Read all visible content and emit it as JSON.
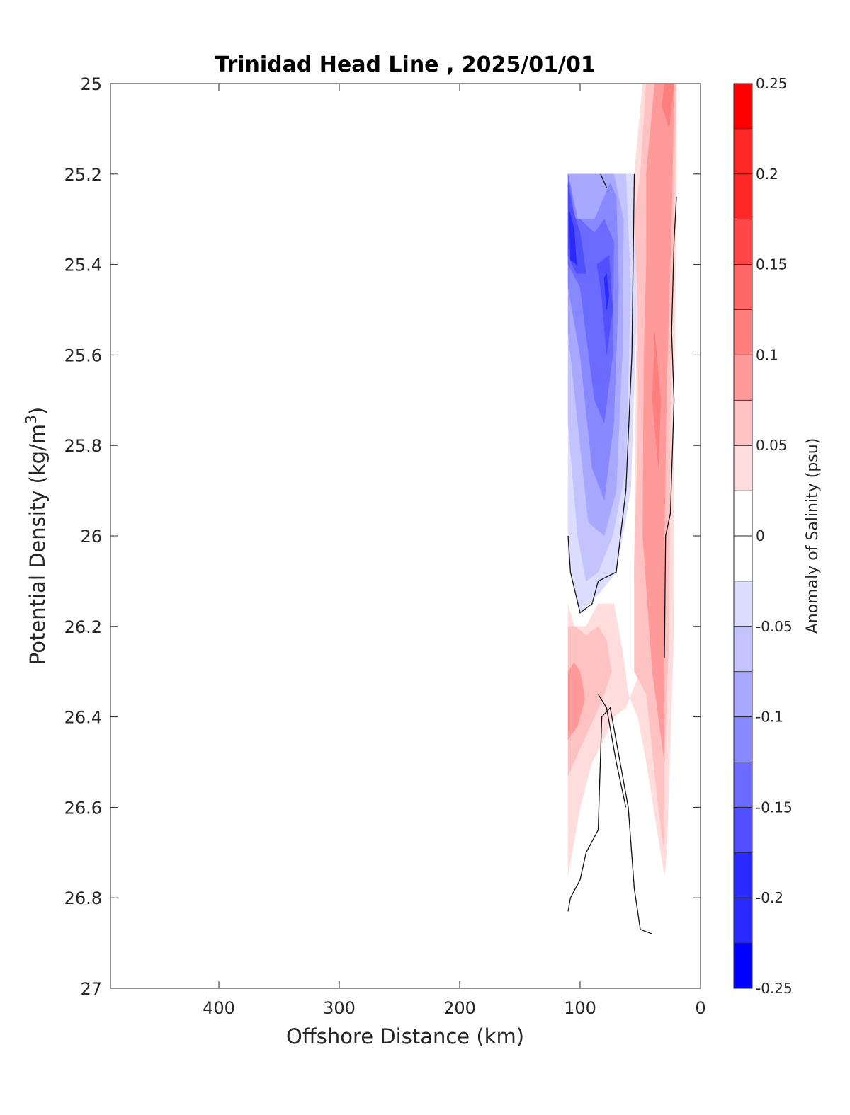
{
  "chart_data": {
    "type": "heatmap",
    "title": "Trinidad Head Line , 2025/01/01",
    "xlabel": "Offshore Distance (km)",
    "ylabel": "Potential Density (kg/m",
    "ylabel_sup": "3",
    "ylabel_end": ")",
    "colorbar_label": "Anomaly of Salinity (psu)",
    "xlim": [
      490,
      0
    ],
    "ylim": [
      25,
      27
    ],
    "x_reversed": true,
    "y_reversed": true,
    "xticks": [
      {
        "value": 400,
        "label": "400"
      },
      {
        "value": 300,
        "label": "300"
      },
      {
        "value": 200,
        "label": "200"
      },
      {
        "value": 100,
        "label": "100"
      },
      {
        "value": 0,
        "label": "0"
      }
    ],
    "yticks": [
      {
        "value": 25,
        "label": "25"
      },
      {
        "value": 25.2,
        "label": "25.2"
      },
      {
        "value": 25.4,
        "label": "25.4"
      },
      {
        "value": 25.6,
        "label": "25.6"
      },
      {
        "value": 25.8,
        "label": "25.8"
      },
      {
        "value": 26,
        "label": "26"
      },
      {
        "value": 26.2,
        "label": "26.2"
      },
      {
        "value": 26.4,
        "label": "26.4"
      },
      {
        "value": 26.6,
        "label": "26.6"
      },
      {
        "value": 26.8,
        "label": "26.8"
      },
      {
        "value": 27,
        "label": "27"
      }
    ],
    "colorbar": {
      "range": [
        -0.25,
        0.25
      ],
      "ticks": [
        {
          "value": 0.25,
          "label": "0.25"
        },
        {
          "value": 0.2,
          "label": "0.2"
        },
        {
          "value": 0.15,
          "label": "0.15"
        },
        {
          "value": 0.1,
          "label": "0.1"
        },
        {
          "value": 0.05,
          "label": "0.05"
        },
        {
          "value": 0,
          "label": "0"
        },
        {
          "value": -0.05,
          "label": "-0.05"
        },
        {
          "value": -0.1,
          "label": "-0.1"
        },
        {
          "value": -0.15,
          "label": "-0.15"
        },
        {
          "value": -0.2,
          "label": "-0.2"
        },
        {
          "value": -0.25,
          "label": "-0.25"
        }
      ],
      "levels": [
        {
          "from": 0.225,
          "to": 0.25,
          "color": "#ff0000"
        },
        {
          "from": 0.175,
          "to": 0.225,
          "color": "#ff2828"
        },
        {
          "from": 0.15,
          "to": 0.175,
          "color": "#ff4747"
        },
        {
          "from": 0.125,
          "to": 0.15,
          "color": "#ff6666"
        },
        {
          "from": 0.1,
          "to": 0.125,
          "color": "#ff7f7f"
        },
        {
          "from": 0.075,
          "to": 0.1,
          "color": "#ff9a9a"
        },
        {
          "from": 0.05,
          "to": 0.075,
          "color": "#ffc2c2"
        },
        {
          "from": 0.025,
          "to": 0.05,
          "color": "#ffdddd"
        },
        {
          "from": -0.025,
          "to": 0.025,
          "color": "#ffffff"
        },
        {
          "from": -0.05,
          "to": -0.025,
          "color": "#dcdcff"
        },
        {
          "from": -0.075,
          "to": -0.05,
          "color": "#c3c3ff"
        },
        {
          "from": -0.1,
          "to": -0.075,
          "color": "#a8a8ff"
        },
        {
          "from": -0.125,
          "to": -0.1,
          "color": "#8888ff"
        },
        {
          "from": -0.15,
          "to": -0.125,
          "color": "#6b6bff"
        },
        {
          "from": -0.175,
          "to": -0.15,
          "color": "#5050ff"
        },
        {
          "from": -0.225,
          "to": -0.175,
          "color": "#2a2aff"
        },
        {
          "from": -0.25,
          "to": -0.225,
          "color": "#0000ff"
        }
      ]
    },
    "anomaly_regions": [
      {
        "color": "#dcdcff",
        "value": -0.04,
        "points": [
          [
            110,
            25.2
          ],
          [
            110,
            26.04
          ],
          [
            100,
            26.17
          ],
          [
            85,
            26.13
          ],
          [
            70,
            26.08
          ],
          [
            58,
            25.9
          ],
          [
            53,
            25.5
          ],
          [
            55,
            25.2
          ]
        ]
      },
      {
        "color": "#c3c3ff",
        "value": -0.06,
        "points": [
          [
            110,
            25.2
          ],
          [
            110,
            25.75
          ],
          [
            102,
            26.0
          ],
          [
            95,
            26.1
          ],
          [
            85,
            26.08
          ],
          [
            73,
            26.0
          ],
          [
            62,
            25.85
          ],
          [
            58,
            25.45
          ],
          [
            62,
            25.2
          ]
        ]
      },
      {
        "color": "#a8a8ff",
        "value": -0.08,
        "points": [
          [
            110,
            25.2
          ],
          [
            110,
            25.55
          ],
          [
            102,
            25.75
          ],
          [
            93,
            25.97
          ],
          [
            80,
            26.0
          ],
          [
            70,
            25.9
          ],
          [
            65,
            25.6
          ],
          [
            64,
            25.3
          ],
          [
            72,
            25.2
          ]
        ]
      },
      {
        "color": "#8888ff",
        "value": -0.11,
        "points": [
          [
            110,
            25.2
          ],
          [
            110,
            25.45
          ],
          [
            100,
            25.6
          ],
          [
            90,
            25.85
          ],
          [
            80,
            25.92
          ],
          [
            72,
            25.75
          ],
          [
            68,
            25.45
          ],
          [
            70,
            25.25
          ],
          [
            75,
            25.22
          ],
          [
            88,
            25.3
          ],
          [
            102,
            25.3
          ]
        ]
      },
      {
        "color": "#6b6bff",
        "value": -0.14,
        "points": [
          [
            110,
            25.2
          ],
          [
            110,
            25.4
          ],
          [
            100,
            25.45
          ],
          [
            88,
            25.7
          ],
          [
            80,
            25.75
          ],
          [
            73,
            25.6
          ],
          [
            72,
            25.35
          ],
          [
            80,
            25.3
          ],
          [
            88,
            25.33
          ],
          [
            100,
            25.3
          ],
          [
            104,
            25.3
          ]
        ]
      },
      {
        "color": "#5050ff",
        "value": -0.16,
        "points": [
          [
            110,
            25.22
          ],
          [
            110,
            25.38
          ],
          [
            103,
            25.42
          ],
          [
            95,
            25.42
          ],
          [
            100,
            25.33
          ],
          [
            106,
            25.28
          ]
        ]
      },
      {
        "color": "#5050ff",
        "value": -0.16,
        "points": [
          [
            86,
            25.4
          ],
          [
            82,
            25.47
          ],
          [
            78,
            25.6
          ],
          [
            73,
            25.5
          ],
          [
            76,
            25.38
          ]
        ]
      },
      {
        "color": "#2a2aff",
        "value": -0.19,
        "points": [
          [
            109,
            25.28
          ],
          [
            108,
            25.39
          ],
          [
            103,
            25.4
          ],
          [
            105,
            25.32
          ]
        ]
      },
      {
        "color": "#2a2aff",
        "value": -0.19,
        "points": [
          [
            80,
            25.43
          ],
          [
            78,
            25.5
          ],
          [
            76,
            25.47
          ],
          [
            78,
            25.42
          ]
        ]
      },
      {
        "color": "#ffdddd",
        "value": 0.04,
        "points": [
          [
            55,
            25.2
          ],
          [
            48,
            25.0
          ],
          [
            20,
            25.0
          ],
          [
            20,
            25.3
          ],
          [
            22,
            25.7
          ],
          [
            22,
            26.2
          ],
          [
            28,
            26.7
          ],
          [
            30,
            26.75
          ],
          [
            45,
            26.5
          ],
          [
            52,
            26.4
          ],
          [
            60,
            26.35
          ],
          [
            65,
            26.25
          ],
          [
            72,
            26.15
          ],
          [
            85,
            26.15
          ],
          [
            95,
            26.2
          ],
          [
            105,
            26.2
          ],
          [
            110,
            26.15
          ],
          [
            110,
            26.75
          ],
          [
            100,
            26.6
          ],
          [
            90,
            26.5
          ],
          [
            80,
            26.45
          ],
          [
            72,
            26.4
          ],
          [
            62,
            26.38
          ],
          [
            50,
            26.3
          ],
          [
            55,
            26.1
          ],
          [
            53,
            25.5
          ]
        ]
      },
      {
        "color": "#ffc2c2",
        "value": 0.06,
        "points": [
          [
            50,
            25.2
          ],
          [
            45,
            25.0
          ],
          [
            20,
            25.0
          ],
          [
            22,
            25.3
          ],
          [
            25,
            25.7
          ],
          [
            26,
            26.2
          ],
          [
            30,
            26.5
          ],
          [
            30,
            26.7
          ],
          [
            35,
            26.6
          ],
          [
            45,
            26.35
          ],
          [
            55,
            26.3
          ],
          [
            55,
            26.05
          ],
          [
            52,
            25.8
          ],
          [
            52,
            25.5
          ],
          [
            55,
            25.3
          ]
        ]
      },
      {
        "color": "#ffc2c2",
        "value": 0.06,
        "points": [
          [
            110,
            26.2
          ],
          [
            110,
            26.53
          ],
          [
            100,
            26.47
          ],
          [
            88,
            26.4
          ],
          [
            80,
            26.35
          ],
          [
            74,
            26.3
          ],
          [
            78,
            26.23
          ],
          [
            85,
            26.2
          ],
          [
            95,
            26.22
          ],
          [
            104,
            26.2
          ]
        ]
      },
      {
        "color": "#ff9a9a",
        "value": 0.08,
        "points": [
          [
            45,
            25.2
          ],
          [
            38,
            25.0
          ],
          [
            22,
            25.0
          ],
          [
            24,
            25.3
          ],
          [
            28,
            25.65
          ],
          [
            30,
            26.0
          ],
          [
            30,
            26.5
          ],
          [
            40,
            26.3
          ],
          [
            48,
            26.0
          ],
          [
            47,
            25.6
          ],
          [
            45,
            25.4
          ]
        ]
      },
      {
        "color": "#ff9a9a",
        "value": 0.08,
        "points": [
          [
            110,
            26.3
          ],
          [
            110,
            26.45
          ],
          [
            102,
            26.42
          ],
          [
            96,
            26.36
          ],
          [
            100,
            26.3
          ],
          [
            105,
            26.28
          ]
        ]
      },
      {
        "color": "#ff7f7f",
        "value": 0.11,
        "points": [
          [
            38,
            25.55
          ],
          [
            33,
            25.7
          ],
          [
            35,
            25.85
          ],
          [
            40,
            25.7
          ]
        ]
      },
      {
        "color": "#ff7f7f",
        "value": 0.11,
        "points": [
          [
            30,
            25.0
          ],
          [
            22,
            25.0
          ],
          [
            26,
            25.1
          ],
          [
            32,
            25.05
          ]
        ]
      }
    ],
    "zero_contours": [
      [
        [
          110,
          26.0
        ],
        [
          108,
          26.08
        ],
        [
          100,
          26.17
        ],
        [
          90,
          26.15
        ],
        [
          85,
          26.1
        ],
        [
          70,
          26.08
        ],
        [
          62,
          25.9
        ],
        [
          57,
          25.6
        ],
        [
          55,
          25.2
        ]
      ],
      [
        [
          83,
          25.2
        ],
        [
          78,
          25.23
        ]
      ],
      [
        [
          20,
          25.25
        ],
        [
          22,
          25.35
        ],
        [
          24,
          25.55
        ],
        [
          22,
          25.7
        ],
        [
          25,
          25.95
        ],
        [
          29,
          26.0
        ],
        [
          30,
          26.27
        ]
      ],
      [
        [
          110,
          26.83
        ],
        [
          108,
          26.8
        ],
        [
          100,
          26.76
        ],
        [
          95,
          26.7
        ],
        [
          85,
          26.65
        ],
        [
          82,
          26.4
        ],
        [
          75,
          26.38
        ],
        [
          60,
          26.6
        ],
        [
          55,
          26.78
        ],
        [
          50,
          26.87
        ],
        [
          40,
          26.88
        ]
      ],
      [
        [
          85,
          26.35
        ],
        [
          78,
          26.38
        ],
        [
          70,
          26.5
        ],
        [
          62,
          26.6
        ]
      ]
    ]
  }
}
